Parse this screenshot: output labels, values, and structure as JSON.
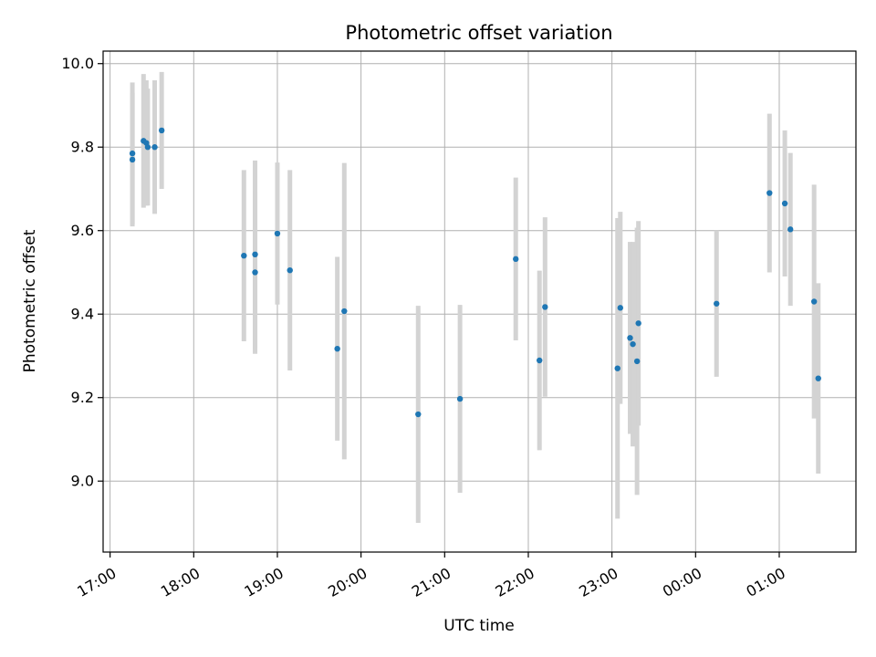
{
  "chart_data": {
    "type": "scatter",
    "title": "Photometric offset variation",
    "xlabel": "UTC time",
    "ylabel": "Photometric offset",
    "grid": true,
    "x_axis": {
      "kind": "time",
      "range": [
        "16:55",
        "01:55"
      ],
      "ticks": [
        "17:00",
        "18:00",
        "19:00",
        "20:00",
        "21:00",
        "22:00",
        "23:00",
        "00:00",
        "01:00"
      ]
    },
    "ylim": [
      8.83,
      10.03
    ],
    "yticks": [
      "9.0",
      "9.2",
      "9.4",
      "9.6",
      "9.8",
      "10.0"
    ],
    "colors": {
      "point": "#1f77b4",
      "errorbar": "#d3d3d3",
      "grid": "#b0b0b0"
    },
    "series": [
      {
        "points": [
          {
            "x": "17:16",
            "y": 9.77,
            "err": 0.16
          },
          {
            "x": "17:16",
            "y": 9.785,
            "err": 0.17
          },
          {
            "x": "17:24",
            "y": 9.815,
            "err": 0.16
          },
          {
            "x": "17:26",
            "y": 9.81,
            "err": 0.15
          },
          {
            "x": "17:27",
            "y": 9.8,
            "err": 0.14
          },
          {
            "x": "17:32",
            "y": 9.8,
            "err": 0.16
          },
          {
            "x": "17:37",
            "y": 9.84,
            "err": 0.14
          },
          {
            "x": "18:36",
            "y": 9.54,
            "err": 0.205
          },
          {
            "x": "18:44",
            "y": 9.543,
            "err": 0.225
          },
          {
            "x": "18:44",
            "y": 9.5,
            "err": 0.195
          },
          {
            "x": "19:00",
            "y": 9.593,
            "err": 0.17
          },
          {
            "x": "19:09",
            "y": 9.505,
            "err": 0.24
          },
          {
            "x": "19:43",
            "y": 9.317,
            "err": 0.22
          },
          {
            "x": "19:48",
            "y": 9.407,
            "err": 0.355
          },
          {
            "x": "20:41",
            "y": 9.16,
            "err": 0.26
          },
          {
            "x": "21:11",
            "y": 9.197,
            "err": 0.225
          },
          {
            "x": "21:51",
            "y": 9.532,
            "err": 0.195
          },
          {
            "x": "22:08",
            "y": 9.289,
            "err": 0.215
          },
          {
            "x": "22:12",
            "y": 9.417,
            "err": 0.215
          },
          {
            "x": "23:04",
            "y": 9.27,
            "err": 0.36
          },
          {
            "x": "23:06",
            "y": 9.415,
            "err": 0.23
          },
          {
            "x": "23:13",
            "y": 9.343,
            "err": 0.23
          },
          {
            "x": "23:15",
            "y": 9.328,
            "err": 0.245
          },
          {
            "x": "23:18",
            "y": 9.287,
            "err": 0.32
          },
          {
            "x": "23:19",
            "y": 9.378,
            "err": 0.245
          },
          {
            "x": "00:15",
            "y": 9.425,
            "err": 0.175
          },
          {
            "x": "00:53",
            "y": 9.69,
            "err": 0.19
          },
          {
            "x": "01:04",
            "y": 9.665,
            "err": 0.175
          },
          {
            "x": "01:08",
            "y": 9.603,
            "err": 0.183
          },
          {
            "x": "01:25",
            "y": 9.43,
            "err": 0.28
          },
          {
            "x": "01:28",
            "y": 9.246,
            "err": 0.228
          }
        ]
      }
    ]
  }
}
